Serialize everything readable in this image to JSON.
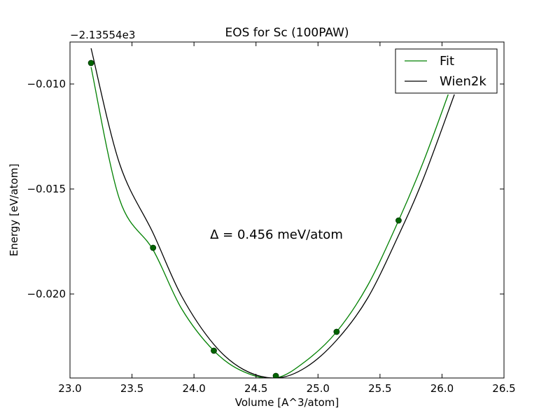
{
  "chart_data": {
    "type": "line",
    "title": "EOS for Sc (100PAW)",
    "xlabel": "Volume [A^3/atom]",
    "ylabel": "Energy [eV/atom]",
    "offset_label": "−2.13554e3",
    "annotation": "Δ = 0.456 meV/atom",
    "xlim": [
      23.0,
      26.5
    ],
    "ylim": [
      -0.024,
      -0.008
    ],
    "x_ticks": [
      23.0,
      23.5,
      24.0,
      24.5,
      25.0,
      25.5,
      26.0,
      26.5
    ],
    "x_tick_labels": [
      "23.0",
      "23.5",
      "24.0",
      "24.5",
      "25.0",
      "25.5",
      "26.0",
      "26.5"
    ],
    "y_ticks": [
      -0.02,
      -0.015,
      -0.01
    ],
    "y_tick_labels": [
      "−0.020",
      "−0.015",
      "−0.010"
    ],
    "legend": {
      "placement": "top-right",
      "entries": [
        "Fit",
        "Wien2k"
      ]
    },
    "colors": {
      "fit": "#008000",
      "wien2k": "#000000",
      "points": "#006400"
    },
    "series": [
      {
        "name": "Fit",
        "kind": "curve",
        "x": [
          23.17,
          23.4,
          23.67,
          23.9,
          24.16,
          24.4,
          24.66,
          24.9,
          25.15,
          25.4,
          25.65,
          25.85,
          26.05
        ],
        "y": [
          -0.0092,
          -0.0155,
          -0.0179,
          -0.0207,
          -0.0227,
          -0.0237,
          -0.024,
          -0.0232,
          -0.0218,
          -0.0196,
          -0.0165,
          -0.0137,
          -0.0105
        ]
      },
      {
        "name": "Wien2k",
        "kind": "curve",
        "x": [
          23.17,
          23.4,
          23.67,
          23.9,
          24.16,
          24.4,
          24.66,
          24.9,
          25.15,
          25.4,
          25.65,
          25.85,
          26.1
        ],
        "y": [
          -0.0083,
          -0.0138,
          -0.0171,
          -0.0201,
          -0.0224,
          -0.0236,
          -0.024,
          -0.0235,
          -0.0222,
          -0.0202,
          -0.0172,
          -0.0145,
          -0.0105
        ]
      },
      {
        "name": "data points",
        "kind": "points",
        "x": [
          23.17,
          23.67,
          24.16,
          24.66,
          25.15,
          25.65
        ],
        "y": [
          -0.009,
          -0.0178,
          -0.0227,
          -0.0239,
          -0.0218,
          -0.0165
        ]
      }
    ]
  }
}
